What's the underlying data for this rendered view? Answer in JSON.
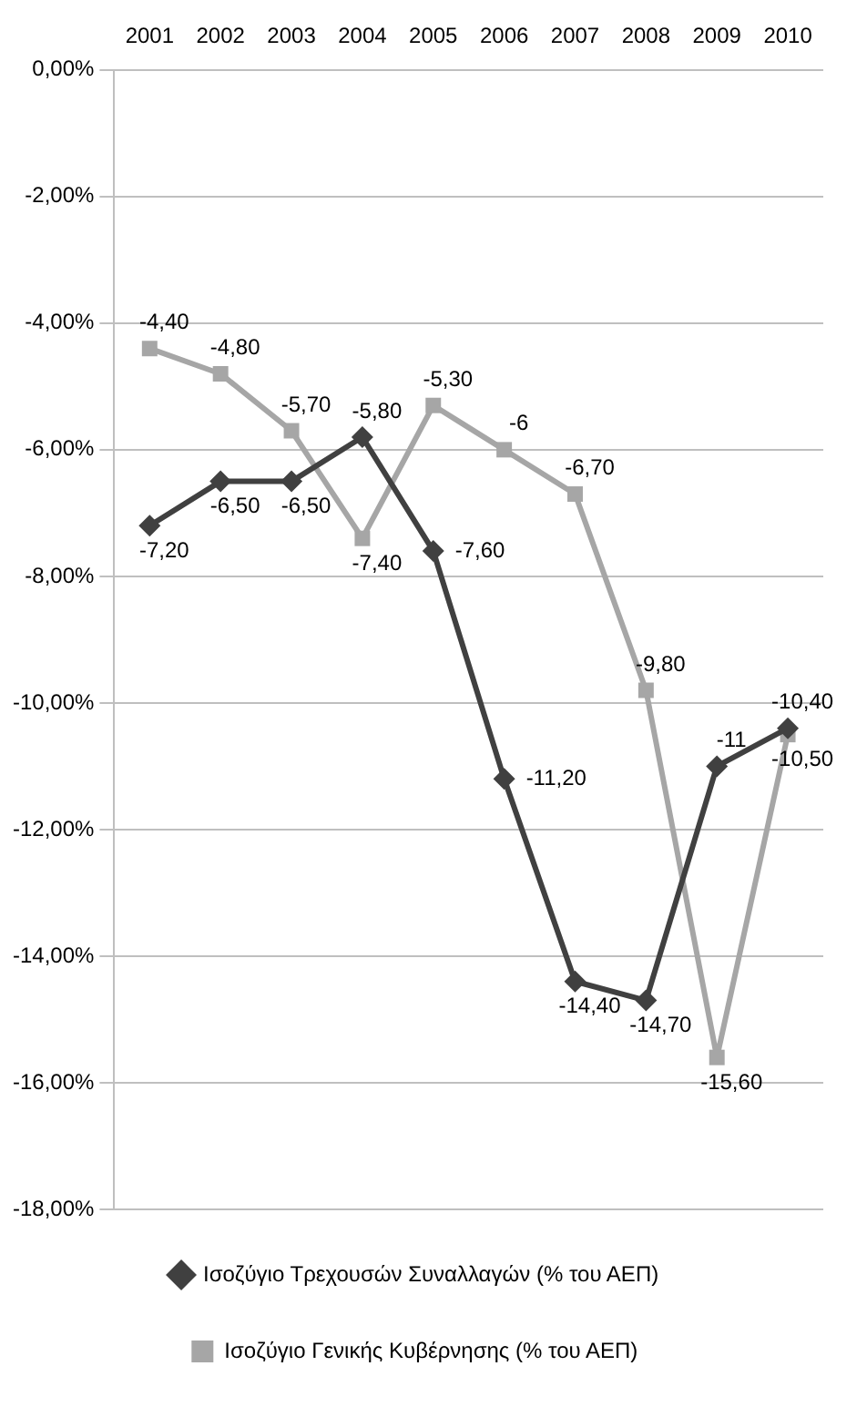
{
  "chart_data": {
    "type": "line",
    "categories": [
      "2001",
      "2002",
      "2003",
      "2004",
      "2005",
      "2006",
      "2007",
      "2008",
      "2009",
      "2010"
    ],
    "series": [
      {
        "name": "Ισοζύγιο Τρεχουσών Συναλλαγών (% του ΑΕΠ)",
        "color": "#404040",
        "marker": "diamond",
        "values": [
          -7.2,
          -6.5,
          -6.5,
          -5.8,
          -7.6,
          -11.2,
          -14.4,
          -14.7,
          -11,
          -10.4
        ],
        "value_labels": [
          "-7,20",
          "-6,50",
          "-6,50",
          "-5,80",
          "-7,60",
          "-11,20",
          "-14,40",
          "-14,70",
          "-11",
          "-10,40"
        ]
      },
      {
        "name": "Ισοζύγιο Γενικής Κυβέρνησης (% του ΑΕΠ)",
        "color": "#a6a6a6",
        "marker": "square",
        "values": [
          -4.4,
          -4.8,
          -5.7,
          -7.4,
          -5.3,
          -6,
          -6.7,
          -9.8,
          -15.6,
          -10.5
        ],
        "value_labels": [
          "-4,40",
          "-4,80",
          "-5,70",
          "-7,40",
          "-5,30",
          "-6",
          "-6,70",
          "-9,80",
          "-15,60",
          "-10,50"
        ]
      }
    ],
    "ylim": [
      -18,
      0
    ],
    "yticks": [
      {
        "value": 0,
        "label": "0,00%"
      },
      {
        "value": -2,
        "label": "-2,00%"
      },
      {
        "value": -4,
        "label": "-4,00%"
      },
      {
        "value": -6,
        "label": "-6,00%"
      },
      {
        "value": -8,
        "label": "-8,00%"
      },
      {
        "value": -10,
        "label": "-10,00%"
      },
      {
        "value": -12,
        "label": "-12,00%"
      },
      {
        "value": -14,
        "label": "-14,00%"
      },
      {
        "value": -16,
        "label": "-16,00%"
      },
      {
        "value": -18,
        "label": "-18,00%"
      }
    ],
    "grid": "y",
    "legend": "bottom",
    "line_style": "solid"
  }
}
